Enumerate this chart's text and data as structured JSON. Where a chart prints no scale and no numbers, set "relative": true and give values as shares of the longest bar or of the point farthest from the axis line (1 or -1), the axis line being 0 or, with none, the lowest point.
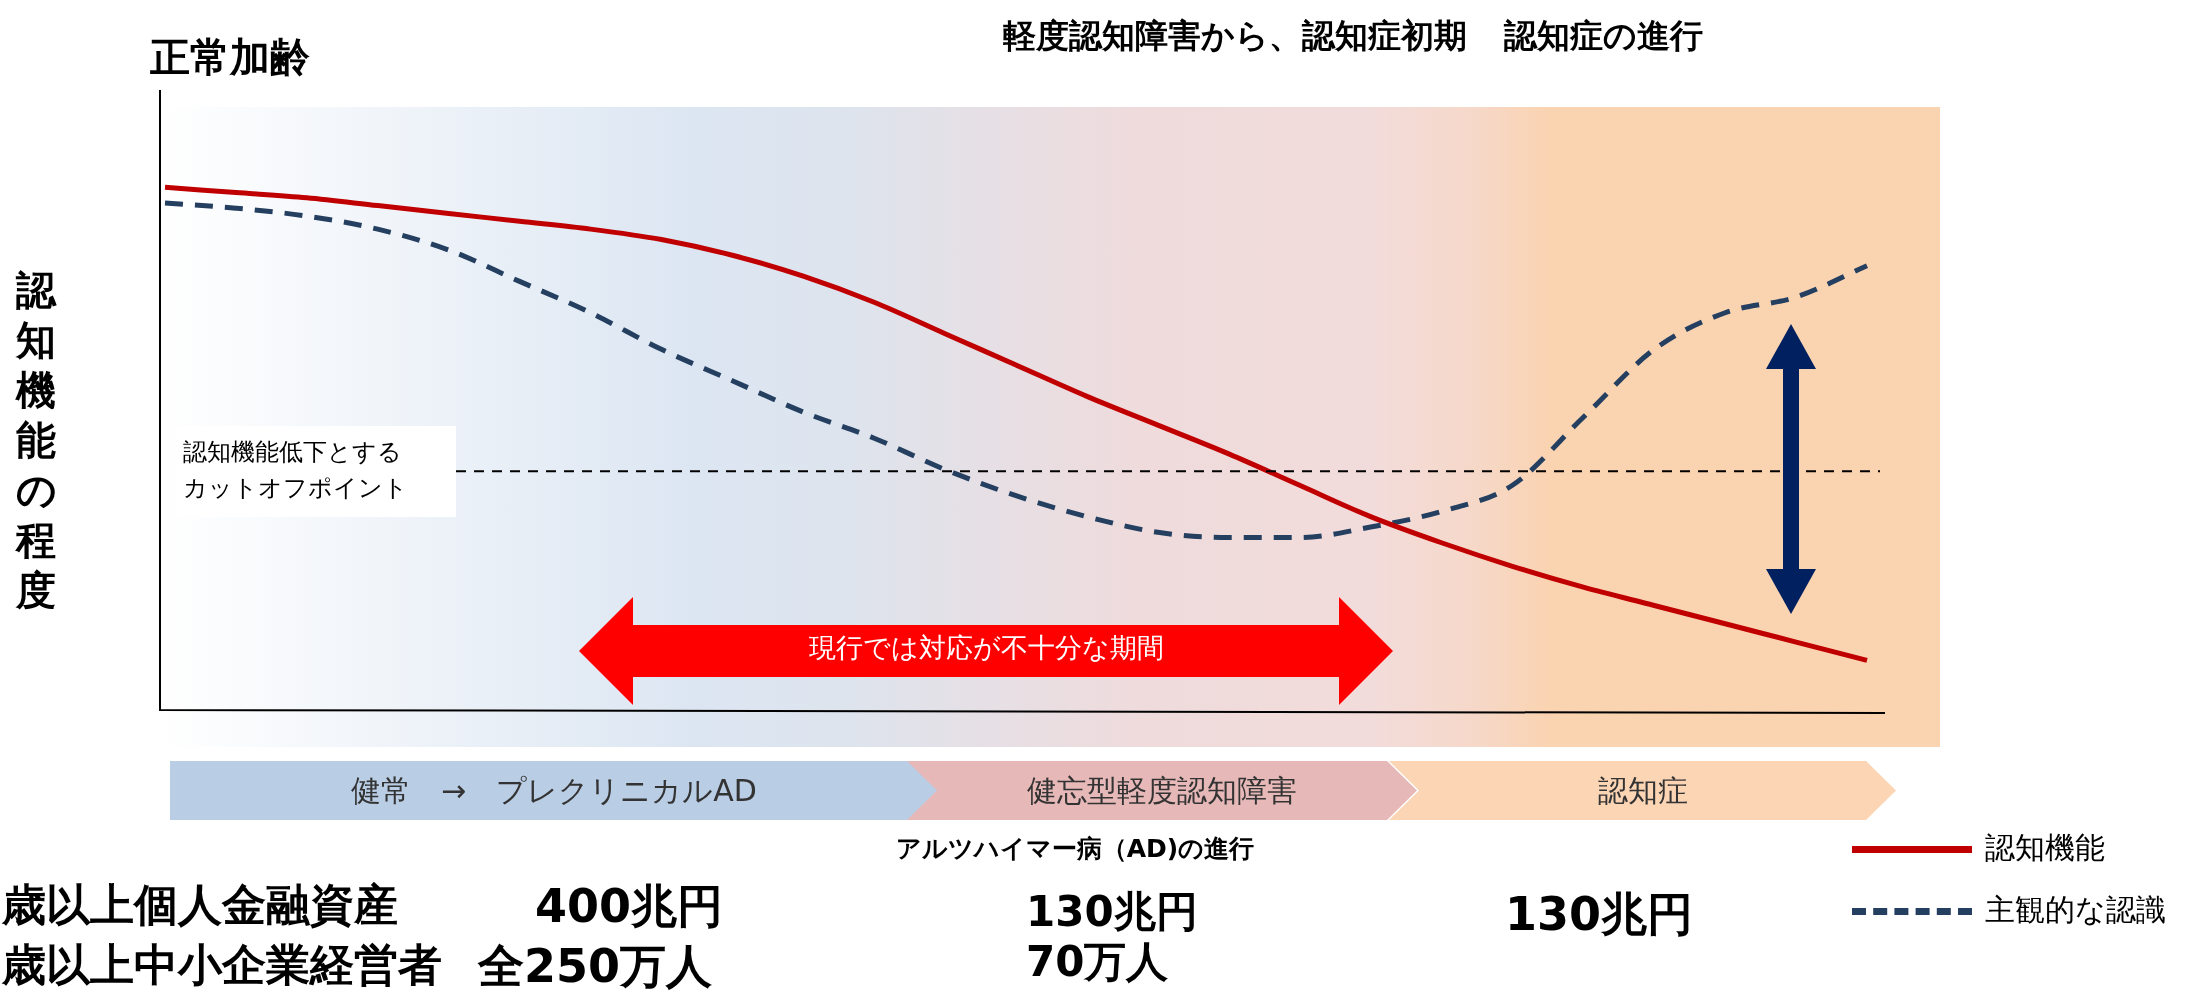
{
  "chart_data": {
    "type": "line",
    "relative": true,
    "ylabel": "認知機能の程度",
    "xlabel": "アルツハイマー病（AD)の進行",
    "categories": [
      null,
      null,
      null,
      null,
      null,
      null,
      null,
      null,
      null,
      null,
      null,
      null,
      null,
      null,
      null,
      null,
      null,
      null,
      null,
      null,
      null,
      null,
      null,
      null,
      null
    ],
    "series": [
      {
        "name": "認知機能",
        "color": "#c00000",
        "line_style": "solid",
        "values": [
          1.0,
          0.99,
          0.98,
          0.965,
          0.95,
          0.935,
          0.92,
          0.9,
          0.87,
          0.83,
          0.78,
          0.72,
          0.66,
          0.6,
          0.545,
          0.49,
          0.43,
          0.37,
          0.32,
          0.275,
          0.235,
          0.2,
          0.165,
          0.13,
          0.095
        ]
      },
      {
        "name": "主観的な認識",
        "color": "#243f60",
        "line_style": "dashed",
        "values": [
          0.97,
          0.96,
          0.945,
          0.92,
          0.88,
          0.82,
          0.76,
          0.69,
          0.63,
          0.57,
          0.52,
          0.46,
          0.41,
          0.37,
          0.34,
          0.33,
          0.33,
          0.35,
          0.38,
          0.43,
          0.56,
          0.69,
          0.76,
          0.79,
          0.85
        ]
      }
    ],
    "ref_lines": [
      {
        "axis": "y",
        "value": 0.457,
        "label": "認知機能低下とするカットオフポイント",
        "color": "#000000",
        "line_style": "dashed"
      }
    ],
    "annotations": [
      "正常加齢",
      "軽度認知障害から、認知症初期",
      "認知症の進行",
      "現行では対応が不十分な期間",
      "健常　→　プレクリニカルAD",
      "健忘型軽度認知障害",
      "認知症",
      "歳以上個人金融資産",
      "400兆円",
      "歳以上中小企業経営者",
      "全250万人",
      "130兆円",
      "70万人",
      "130兆円"
    ],
    "legend": "bottom right",
    "marker": "none"
  }
}
